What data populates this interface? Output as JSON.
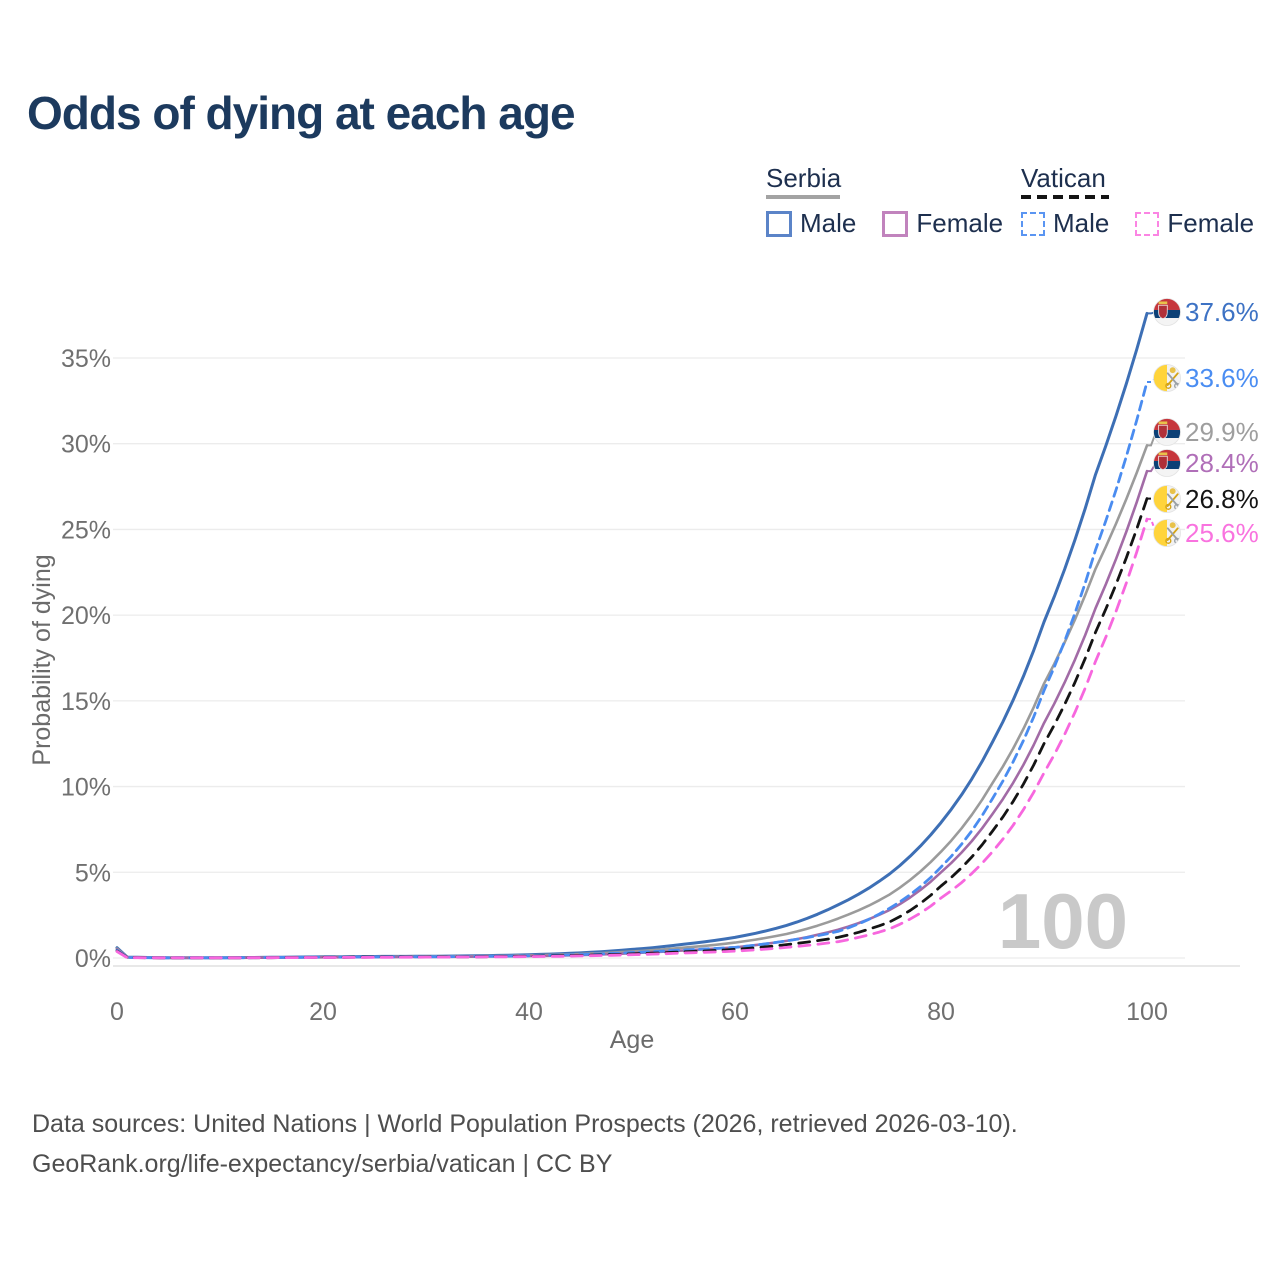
{
  "header": {
    "title": "Odds of dying at each age"
  },
  "legend": {
    "groups": [
      {
        "name": "Serbia",
        "line_style": "solid",
        "sample_color": "#a3a3a3",
        "items": [
          {
            "label": "Male",
            "color": "#5b84c8"
          },
          {
            "label": "Female",
            "color": "#c183bd"
          }
        ]
      },
      {
        "name": "Vatican",
        "line_style": "dashed",
        "sample_color": "#141414",
        "items": [
          {
            "label": "Male",
            "color": "#5a95f2"
          },
          {
            "label": "Female",
            "color": "#fb85e3"
          }
        ]
      }
    ]
  },
  "chart_data": {
    "type": "line",
    "title": "Odds of dying at each age",
    "xlabel": "Age",
    "ylabel": "Probability of dying",
    "xlim": [
      0,
      100
    ],
    "ylim": [
      0,
      38
    ],
    "grid": "horizontal",
    "legend_position": "top-right",
    "x_ticks": [
      {
        "label": "0",
        "value": 0
      },
      {
        "label": "20",
        "value": 20
      },
      {
        "label": "40",
        "value": 40
      },
      {
        "label": "60",
        "value": 60
      },
      {
        "label": "80",
        "value": 80
      },
      {
        "label": "100",
        "value": 100
      }
    ],
    "y_ticks": [
      {
        "label": "0%",
        "value": 0
      },
      {
        "label": "5%",
        "value": 5
      },
      {
        "label": "10%",
        "value": 10
      },
      {
        "label": "15%",
        "value": 15
      },
      {
        "label": "20%",
        "value": 20
      },
      {
        "label": "25%",
        "value": 25
      },
      {
        "label": "30%",
        "value": 30
      },
      {
        "label": "35%",
        "value": 35
      }
    ],
    "age_ticker": "100",
    "ages": [
      0,
      1,
      5,
      10,
      15,
      20,
      25,
      30,
      35,
      40,
      45,
      50,
      55,
      60,
      65,
      70,
      75,
      80,
      85,
      90,
      95,
      100
    ],
    "series": [
      {
        "id": "serbia-male",
        "name": "Serbia Male",
        "country": "Serbia",
        "sex": "male",
        "line_style": "solid",
        "color": "#3d6fb5",
        "label_color": "#3d72c4",
        "end_label": "37.6%",
        "flag": "serbia",
        "values": [
          0.6,
          0.05,
          0.02,
          0.02,
          0.04,
          0.07,
          0.09,
          0.1,
          0.13,
          0.19,
          0.3,
          0.5,
          0.8,
          1.2,
          1.9,
          3.1,
          4.9,
          7.9,
          12.6,
          19.6,
          28.2,
          37.6
        ]
      },
      {
        "id": "serbia-total",
        "name": "Serbia both sexes",
        "country": "Serbia",
        "sex": "both",
        "line_style": "solid",
        "color": "#9b9b9b",
        "label_color": "#9e9e9e",
        "end_label": "29.9%",
        "flag": "serbia",
        "values": [
          0.55,
          0.04,
          0.02,
          0.02,
          0.03,
          0.05,
          0.07,
          0.08,
          0.1,
          0.15,
          0.23,
          0.38,
          0.6,
          0.9,
          1.4,
          2.3,
          3.7,
          6.2,
          10.2,
          16.0,
          22.7,
          29.9
        ]
      },
      {
        "id": "serbia-female",
        "name": "Serbia Female",
        "country": "Serbia",
        "sex": "female",
        "line_style": "solid",
        "color": "#a26ba6",
        "label_color": "#b06fb8",
        "end_label": "28.4%",
        "flag": "serbia",
        "values": [
          0.5,
          0.04,
          0.01,
          0.01,
          0.02,
          0.04,
          0.05,
          0.06,
          0.08,
          0.11,
          0.17,
          0.28,
          0.44,
          0.62,
          1.0,
          1.65,
          2.8,
          5.0,
          8.4,
          13.7,
          20.4,
          28.4
        ]
      },
      {
        "id": "vatican-male",
        "name": "Vatican Male",
        "country": "Vatican",
        "sex": "male",
        "line_style": "dashed",
        "color": "#4a8cf0",
        "label_color": "#4a8df2",
        "end_label": "33.6%",
        "flag": "vatican",
        "values": [
          0.45,
          0.03,
          0.01,
          0.01,
          0.03,
          0.05,
          0.06,
          0.07,
          0.09,
          0.13,
          0.2,
          0.32,
          0.47,
          0.62,
          1.0,
          1.55,
          2.9,
          5.3,
          9.3,
          15.6,
          23.8,
          33.6
        ]
      },
      {
        "id": "vatican-total",
        "name": "Vatican both sexes",
        "country": "Vatican",
        "sex": "both",
        "line_style": "dashed",
        "color": "#141414",
        "label_color": "#141414",
        "end_label": "26.8%",
        "flag": "vatican",
        "values": [
          0.4,
          0.03,
          0.01,
          0.01,
          0.02,
          0.04,
          0.05,
          0.06,
          0.07,
          0.1,
          0.15,
          0.24,
          0.36,
          0.5,
          0.78,
          1.2,
          2.1,
          4.2,
          7.4,
          12.5,
          19.0,
          26.8
        ]
      },
      {
        "id": "vatican-female",
        "name": "Vatican Female",
        "country": "Vatican",
        "sex": "female",
        "line_style": "dashed",
        "color": "#f767de",
        "label_color": "#f973df",
        "end_label": "25.6%",
        "flag": "vatican",
        "values": [
          0.38,
          0.02,
          0.01,
          0.01,
          0.02,
          0.03,
          0.04,
          0.05,
          0.06,
          0.08,
          0.12,
          0.19,
          0.29,
          0.4,
          0.62,
          0.95,
          1.7,
          3.5,
          6.2,
          10.8,
          17.3,
          25.6
        ]
      }
    ]
  },
  "footer": {
    "line1": "Data sources: United Nations | World Population Prospects (2026, retrieved 2026-03-10).",
    "line2": "GeoRank.org/life-expectancy/serbia/vatican | CC BY"
  }
}
